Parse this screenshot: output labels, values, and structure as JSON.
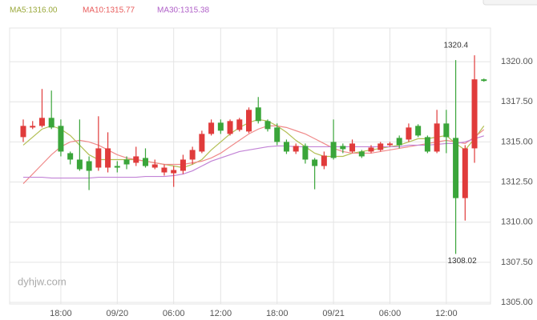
{
  "chart_data": {
    "type": "candlestick",
    "legend": [
      {
        "text": "MA5:1316.00",
        "color": "#9aa83a"
      },
      {
        "text": "MA10:1315.77",
        "color": "#e85a5a"
      },
      {
        "text": "MA30:1315.38",
        "color": "#b060c8"
      }
    ],
    "watermark": "dyhjw.com",
    "annotations": [
      {
        "text": "1320.4",
        "at": "high"
      },
      {
        "text": "1308.02",
        "at": "low"
      }
    ],
    "categories": [
      null,
      null,
      null,
      null,
      "18:00",
      null,
      null,
      null,
      null,
      null,
      "09/20",
      null,
      null,
      null,
      null,
      null,
      "06:00",
      null,
      null,
      null,
      null,
      "12:00",
      null,
      null,
      null,
      null,
      null,
      "18:00",
      null,
      null,
      null,
      null,
      null,
      "09/21",
      null,
      null,
      null,
      null,
      null,
      "06:00",
      null,
      null,
      null,
      null,
      null,
      "12:00",
      null,
      null,
      null,
      null
    ],
    "open": [
      1315.3,
      1315.9,
      1316.0,
      1316.5,
      1316.0,
      1314.3,
      1313.9,
      1313.8,
      1313.4,
      1313.4,
      1313.5,
      1313.9,
      1313.7,
      1314.0,
      1313.4,
      1313.1,
      1313.05,
      1313.2,
      1313.9,
      1314.4,
      1315.5,
      1316.2,
      1315.5,
      1315.75,
      1315.65,
      1317.15,
      1316.3,
      1315.9,
      1315.0,
      1314.4,
      1314.75,
      1313.9,
      1313.5,
      1315.0,
      1314.75,
      1314.4,
      1314.4,
      1314.4,
      1314.5,
      1314.8,
      1315.25,
      1315.15,
      1316.0,
      1315.3,
      1314.4,
      1316.15,
      1315.25,
      1311.5,
      1314.6,
      1318.9
    ],
    "close": [
      1316.0,
      1316.0,
      1316.5,
      1315.9,
      1314.4,
      1313.9,
      1313.3,
      1313.2,
      1314.6,
      1314.6,
      1313.4,
      1313.6,
      1314.1,
      1313.5,
      1313.6,
      1313.4,
      1313.25,
      1313.9,
      1314.5,
      1315.5,
      1316.2,
      1315.7,
      1316.3,
      1316.4,
      1317.0,
      1316.3,
      1315.8,
      1315.0,
      1314.4,
      1314.75,
      1313.9,
      1313.5,
      1314.15,
      1314.0,
      1314.55,
      1314.9,
      1314.1,
      1314.65,
      1314.9,
      1314.9,
      1314.8,
      1315.9,
      1315.4,
      1314.4,
      1316.15,
      1315.3,
      1311.5,
      1314.6,
      1318.9,
      1318.8
    ],
    "high": [
      1316.4,
      1316.3,
      1318.3,
      1318.2,
      1316.4,
      1314.4,
      1316.4,
      1314.1,
      1316.6,
      1315.6,
      1313.8,
      1314.1,
      1314.7,
      1314.6,
      1313.9,
      1313.6,
      1313.5,
      1314.2,
      1314.7,
      1315.7,
      1316.4,
      1316.4,
      1316.4,
      1316.5,
      1317.15,
      1317.8,
      1316.4,
      1316.15,
      1315.15,
      1314.9,
      1314.9,
      1314.0,
      1314.4,
      1316.4,
      1314.9,
      1315.15,
      1314.5,
      1314.8,
      1315.0,
      1315.0,
      1315.4,
      1316.15,
      1316.1,
      1315.4,
      1317.0,
      1317.0,
      1320.1,
      1314.8,
      1320.4,
      1318.95
    ],
    "low": [
      1315.0,
      1315.8,
      1315.9,
      1315.8,
      1314.1,
      1313.6,
      1313.2,
      1312.0,
      1313.2,
      1313.1,
      1313.1,
      1313.3,
      1313.5,
      1313.4,
      1313.3,
      1312.9,
      1312.2,
      1313.0,
      1313.6,
      1314.3,
      1315.4,
      1315.5,
      1315.4,
      1315.65,
      1315.55,
      1316.15,
      1315.65,
      1314.8,
      1314.25,
      1314.25,
      1313.65,
      1312.05,
      1313.3,
      1313.9,
      1314.3,
      1314.3,
      1314.0,
      1314.3,
      1314.4,
      1314.7,
      1314.6,
      1315.0,
      1315.3,
      1314.3,
      1314.3,
      1314.3,
      1308.02,
      1310.1,
      1313.7,
      1318.75
    ],
    "up_color": "#e03b3b",
    "down_color": "#3aa53a",
    "series": [
      {
        "name": "MA5",
        "color": "#b3bf55",
        "values": [
          1314.8,
          1315.3,
          1315.8,
          1316.0,
          1315.8,
          1315.4,
          1314.8,
          1314.2,
          1313.9,
          1313.9,
          1313.9,
          1313.9,
          1313.9,
          1313.8,
          1313.7,
          1313.6,
          1313.5,
          1313.4,
          1313.6,
          1313.9,
          1314.5,
          1315.0,
          1315.5,
          1315.9,
          1316.2,
          1316.4,
          1316.3,
          1316.0,
          1315.6,
          1315.1,
          1314.7,
          1314.3,
          1314.1,
          1314.1,
          1314.1,
          1314.3,
          1314.4,
          1314.5,
          1314.6,
          1314.7,
          1314.8,
          1315.0,
          1315.2,
          1315.2,
          1315.3,
          1315.4,
          1314.9,
          1314.5,
          1315.2,
          1316.0
        ]
      },
      {
        "name": "MA10",
        "color": "#f08a8a",
        "values": [
          1312.4,
          1313.0,
          1313.6,
          1314.2,
          1314.7,
          1315.0,
          1315.1,
          1315.0,
          1314.8,
          1314.5,
          1314.2,
          1314.0,
          1313.9,
          1313.8,
          1313.7,
          1313.6,
          1313.6,
          1313.6,
          1313.7,
          1313.8,
          1314.0,
          1314.3,
          1314.7,
          1315.1,
          1315.5,
          1315.8,
          1316.0,
          1316.0,
          1315.9,
          1315.7,
          1315.5,
          1315.2,
          1314.9,
          1314.6,
          1314.4,
          1314.3,
          1314.3,
          1314.3,
          1314.4,
          1314.5,
          1314.6,
          1314.7,
          1314.8,
          1314.9,
          1315.0,
          1315.1,
          1315.0,
          1314.9,
          1315.3,
          1315.77
        ]
      },
      {
        "name": "MA30",
        "color": "#c283d6",
        "values": [
          1312.8,
          1312.8,
          1312.8,
          1312.75,
          1312.75,
          1312.75,
          1312.75,
          1312.75,
          1312.8,
          1312.8,
          1312.8,
          1312.8,
          1312.8,
          1312.85,
          1312.85,
          1312.85,
          1312.9,
          1313.0,
          1313.2,
          1313.5,
          1313.8,
          1314.0,
          1314.2,
          1314.4,
          1314.5,
          1314.6,
          1314.7,
          1314.75,
          1314.75,
          1314.7,
          1314.7,
          1314.7,
          1314.7,
          1314.7,
          1314.7,
          1314.7,
          1314.7,
          1314.7,
          1314.7,
          1314.7,
          1314.7,
          1314.8,
          1314.8,
          1314.8,
          1314.85,
          1314.9,
          1314.9,
          1315.0,
          1315.2,
          1315.38
        ]
      }
    ],
    "ylim": [
      1304.9,
      1322.1
    ],
    "yticks": [
      {
        "value": 1305,
        "label": "1305.00"
      },
      {
        "value": 1307.5,
        "label": "1307.50"
      },
      {
        "value": 1310,
        "label": "1310.00"
      },
      {
        "value": 1312.5,
        "label": "1312.50"
      },
      {
        "value": 1315,
        "label": "1315.00"
      },
      {
        "value": 1317.5,
        "label": "1317.50"
      },
      {
        "value": 1320,
        "label": "1320.00"
      }
    ],
    "grid": true
  }
}
